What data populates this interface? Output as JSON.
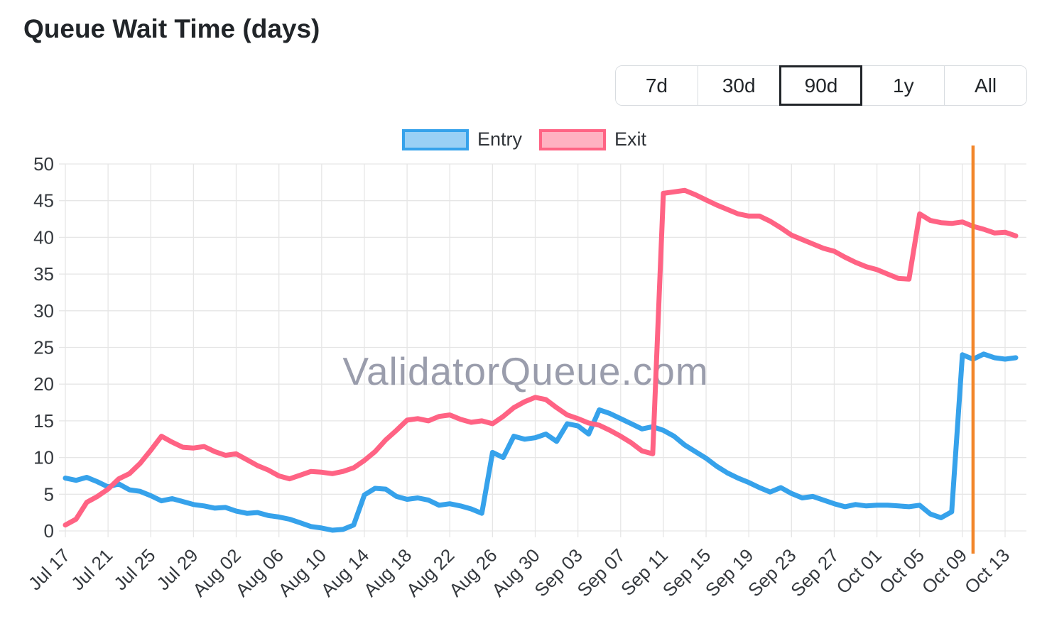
{
  "header": {
    "title": "Queue Wait Time (days)"
  },
  "range_selector": {
    "options": [
      "7d",
      "30d",
      "90d",
      "1y",
      "All"
    ],
    "selected": "90d"
  },
  "watermark": "ValidatorQueue.com",
  "colors": {
    "entry_line": "#36a2eb",
    "entry_fill": "#9ad0f5",
    "exit_line": "#ff6384",
    "exit_fill": "#ffb1c1",
    "grid": "#e6e6e6",
    "annotation": "#f2862a",
    "tick_text": "#35393e"
  },
  "chart_data": {
    "type": "line",
    "title": "Queue Wait Time (days)",
    "xlabel": "",
    "ylabel": "",
    "ylim": [
      0,
      50
    ],
    "y_ticks": [
      0,
      5,
      10,
      15,
      20,
      25,
      30,
      35,
      40,
      45,
      50
    ],
    "grid": true,
    "legend_position": "top-center",
    "x_tick_every": 4,
    "x": [
      "Jul 17",
      "Jul 18",
      "Jul 19",
      "Jul 20",
      "Jul 21",
      "Jul 22",
      "Jul 23",
      "Jul 24",
      "Jul 25",
      "Jul 26",
      "Jul 27",
      "Jul 28",
      "Jul 29",
      "Jul 30",
      "Jul 31",
      "Aug 01",
      "Aug 02",
      "Aug 03",
      "Aug 04",
      "Aug 05",
      "Aug 06",
      "Aug 07",
      "Aug 08",
      "Aug 09",
      "Aug 10",
      "Aug 11",
      "Aug 12",
      "Aug 13",
      "Aug 14",
      "Aug 15",
      "Aug 16",
      "Aug 17",
      "Aug 18",
      "Aug 19",
      "Aug 20",
      "Aug 21",
      "Aug 22",
      "Aug 23",
      "Aug 24",
      "Aug 25",
      "Aug 26",
      "Aug 27",
      "Aug 28",
      "Aug 29",
      "Aug 30",
      "Aug 31",
      "Sep 01",
      "Sep 02",
      "Sep 03",
      "Sep 04",
      "Sep 05",
      "Sep 06",
      "Sep 07",
      "Sep 08",
      "Sep 09",
      "Sep 10",
      "Sep 11",
      "Sep 12",
      "Sep 13",
      "Sep 14",
      "Sep 15",
      "Sep 16",
      "Sep 17",
      "Sep 18",
      "Sep 19",
      "Sep 20",
      "Sep 21",
      "Sep 22",
      "Sep 23",
      "Sep 24",
      "Sep 25",
      "Sep 26",
      "Sep 27",
      "Sep 28",
      "Sep 29",
      "Sep 30",
      "Oct 01",
      "Oct 02",
      "Oct 03",
      "Oct 04",
      "Oct 05",
      "Oct 06",
      "Oct 07",
      "Oct 08",
      "Oct 09",
      "Oct 10",
      "Oct 11",
      "Oct 12",
      "Oct 13",
      "Oct 14"
    ],
    "series": [
      {
        "name": "Entry",
        "color": "#36a2eb",
        "fill": "#9ad0f5",
        "values": [
          7.2,
          6.9,
          7.3,
          6.7,
          6.0,
          6.4,
          5.6,
          5.4,
          4.8,
          4.1,
          4.4,
          4.0,
          3.6,
          3.4,
          3.1,
          3.2,
          2.7,
          2.4,
          2.5,
          2.1,
          1.9,
          1.6,
          1.1,
          0.6,
          0.4,
          0.1,
          0.2,
          0.8,
          4.9,
          5.8,
          5.7,
          4.7,
          4.3,
          4.5,
          4.2,
          3.5,
          3.7,
          3.4,
          3.0,
          2.4,
          10.7,
          10.0,
          12.9,
          12.5,
          12.7,
          13.2,
          12.2,
          14.6,
          14.3,
          13.2,
          16.5,
          16.0,
          15.3,
          14.6,
          13.9,
          14.2,
          13.7,
          12.9,
          11.7,
          10.8,
          9.9,
          8.8,
          7.9,
          7.2,
          6.6,
          5.9,
          5.3,
          5.9,
          5.1,
          4.5,
          4.7,
          4.2,
          3.7,
          3.3,
          3.6,
          3.4,
          3.5,
          3.5,
          3.4,
          3.3,
          3.5,
          2.3,
          1.8,
          2.6,
          24.0,
          23.4,
          24.1,
          23.6,
          23.4,
          23.6
        ]
      },
      {
        "name": "Exit",
        "color": "#ff6384",
        "fill": "#ffb1c1",
        "values": [
          0.8,
          1.6,
          3.9,
          4.7,
          5.7,
          7.1,
          7.8,
          9.2,
          11.0,
          12.9,
          12.1,
          11.4,
          11.3,
          11.5,
          10.8,
          10.3,
          10.5,
          9.7,
          8.9,
          8.3,
          7.5,
          7.1,
          7.6,
          8.1,
          8.0,
          7.8,
          8.1,
          8.6,
          9.6,
          10.8,
          12.4,
          13.7,
          15.1,
          15.3,
          15.0,
          15.6,
          15.8,
          15.2,
          14.8,
          15.0,
          14.6,
          15.6,
          16.8,
          17.6,
          18.2,
          17.9,
          16.8,
          15.8,
          15.3,
          14.7,
          14.4,
          13.7,
          12.9,
          12.0,
          10.9,
          10.5,
          46.0,
          46.2,
          46.4,
          45.8,
          45.1,
          44.4,
          43.8,
          43.2,
          42.9,
          42.9,
          42.2,
          41.3,
          40.3,
          39.7,
          39.1,
          38.5,
          38.1,
          37.3,
          36.6,
          36.0,
          35.6,
          35.0,
          34.4,
          34.3,
          43.2,
          42.3,
          42.0,
          41.9,
          42.1,
          41.5,
          41.1,
          40.6,
          40.7,
          40.2
        ]
      }
    ],
    "annotation": {
      "type": "vline",
      "label": "Oct 10",
      "x_index": 85,
      "color": "#f2862a"
    }
  }
}
